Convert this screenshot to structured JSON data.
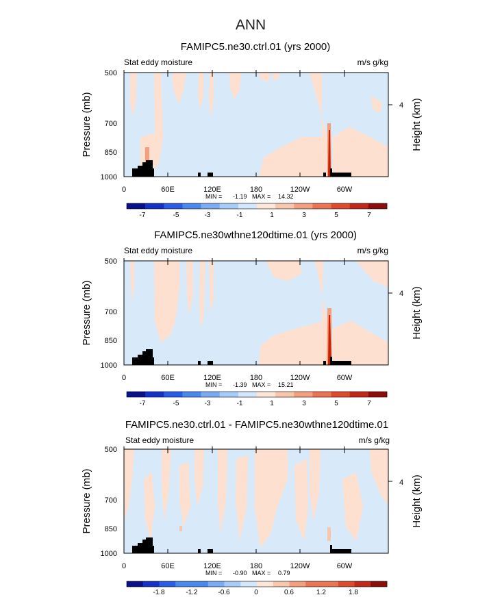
{
  "figure_title": "ANN",
  "colors": {
    "positive_fill": "#fde0d0",
    "negative_fill": "#d8e9fa",
    "peak_red": "#cc2200",
    "topography": "#000000"
  },
  "colorbar_colors": [
    "#08108c",
    "#1432c8",
    "#2a5ce6",
    "#4a88f0",
    "#7aacf6",
    "#a8ccfa",
    "#d2e6fc",
    "#fde6d8",
    "#f8c6ac",
    "#f4a07e",
    "#ec7454",
    "#de4a2e",
    "#c0281a",
    "#8e0c0c"
  ],
  "chart_data": [
    {
      "type": "heatmap",
      "title": "FAMIPC5.ne30.ctrl.01 (yrs 2000)",
      "left_label": "Stat eddy moisture",
      "right_label": "m/s g/kg",
      "ylabel": "Pressure (mb)",
      "y2label": "Height (km)",
      "y_ticks": [
        "500",
        "700",
        "850",
        "1000"
      ],
      "y2_ticks": [
        "4"
      ],
      "x_ticks": [
        "0",
        "60E",
        "120E",
        "180",
        "120W",
        "60W"
      ],
      "min_label": "MIN = ",
      "min_value": "-1.19",
      "max_label": "MAX = ",
      "max_value": "14.32",
      "colorbar_labels": [
        "-7",
        "-5",
        "-3",
        "-1",
        "1",
        "3",
        "5",
        "7"
      ]
    },
    {
      "type": "heatmap",
      "title": "FAMIPC5.ne30wthne120dtime.01 (yrs 2000)",
      "left_label": "Stat eddy moisture",
      "right_label": "m/s g/kg",
      "ylabel": "Pressure (mb)",
      "y2label": "Height (km)",
      "y_ticks": [
        "500",
        "700",
        "850",
        "1000"
      ],
      "y2_ticks": [
        "4"
      ],
      "x_ticks": [
        "0",
        "60E",
        "120E",
        "180",
        "120W",
        "60W"
      ],
      "min_label": "MIN = ",
      "min_value": "-1.39",
      "max_label": "MAX = ",
      "max_value": "15.21",
      "colorbar_labels": [
        "-7",
        "-5",
        "-3",
        "-1",
        "1",
        "3",
        "5",
        "7"
      ]
    },
    {
      "type": "heatmap",
      "title": "FAMIPC5.ne30.ctrl.01 - FAMIPC5.ne30wthne120dtime.01",
      "left_label": "Stat eddy moisture",
      "right_label": "m/s g/kg",
      "ylabel": "Pressure (mb)",
      "y2label": "Height (km)",
      "y_ticks": [
        "500",
        "700",
        "850",
        "1000"
      ],
      "y2_ticks": [
        "4"
      ],
      "x_ticks": [
        "0",
        "60E",
        "120E",
        "180",
        "120W",
        "60W"
      ],
      "min_label": "MIN = ",
      "min_value": "-0.90",
      "max_label": "MAX = ",
      "max_value": "0.79",
      "colorbar_labels": [
        "-1.8",
        "-1.2",
        "-0.6",
        "0",
        "0.6",
        "1.2",
        "1.8"
      ]
    }
  ]
}
